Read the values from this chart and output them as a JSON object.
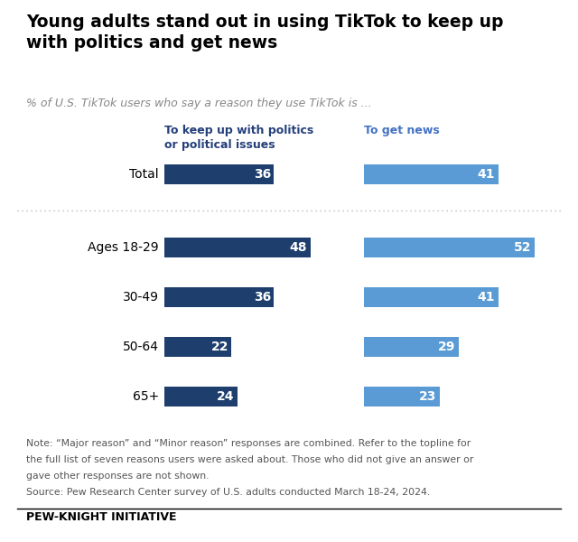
{
  "title": "Young adults stand out in using TikTok to keep up\nwith politics and get news",
  "subtitle": "% of U.S. TikTok users who say a reason they use TikTok is ...",
  "col1_header": "To keep up with politics\nor political issues",
  "col2_header": "To get news",
  "categories_total": [
    "Total"
  ],
  "categories_age": [
    "Ages 18-29",
    "30-49",
    "50-64",
    "65+"
  ],
  "politics_total": [
    36
  ],
  "politics_age": [
    48,
    36,
    22,
    24
  ],
  "news_total": [
    41
  ],
  "news_age": [
    52,
    41,
    29,
    23
  ],
  "dark_blue": "#1e3f6e",
  "light_blue": "#5b9bd5",
  "header_dark_blue": "#243f7a",
  "header_light_blue": "#4472c4",
  "xlim": [
    0,
    60
  ],
  "note_line1": "Note: “Major reason” and “Minor reason” responses are combined. Refer to the topline for",
  "note_line2": "the full list of seven reasons users were asked about. Those who did not give an answer or",
  "note_line3": "gave other responses are not shown.",
  "note_line4": "Source: Pew Research Center survey of U.S. adults conducted March 18-24, 2024.",
  "footer": "PEW-KNIGHT INITIATIVE",
  "bar_height": 0.6,
  "background_color": "#ffffff"
}
